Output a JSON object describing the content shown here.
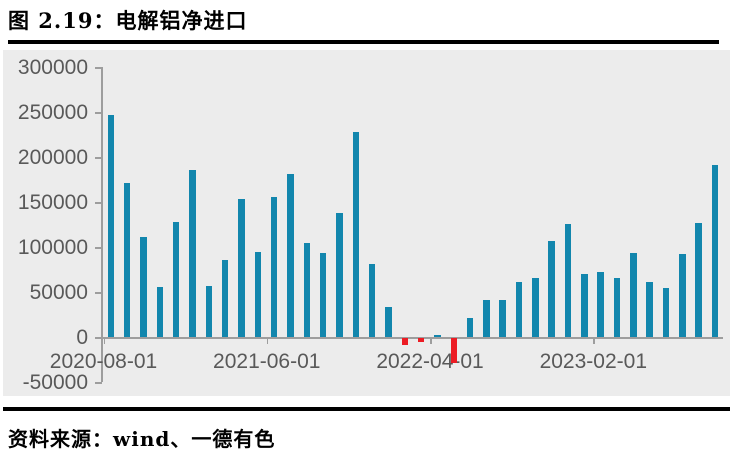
{
  "header": {
    "title": "图 2.19：电解铝净进口"
  },
  "footer": {
    "source": "资料来源：wind、一德有色"
  },
  "chart_data": {
    "type": "bar",
    "title": "电解铝净进口",
    "xlabel": "",
    "ylabel": "",
    "ylim": [
      -50000,
      300000
    ],
    "grid": false,
    "legend": "none",
    "plot_background": "#ececec",
    "axis_color": "#9d9d9d",
    "tick_label_color": "#595959",
    "bar_color_positive": "#1286ad",
    "bar_color_negative": "#ec1c24",
    "yticks": [
      300000,
      250000,
      200000,
      150000,
      100000,
      50000,
      0,
      -50000
    ],
    "ytick_labels": [
      "300000",
      "250000",
      "200000",
      "150000",
      "100000",
      "50000",
      "0",
      "-50000"
    ],
    "xtick_labels": [
      "2020-08-01",
      "2021-06-01",
      "2022-04-01",
      "2023-02-01"
    ],
    "xtick_month_index": [
      0,
      10,
      20,
      30
    ],
    "x": [
      "2020-08",
      "2020-09",
      "2020-10",
      "2020-11",
      "2020-12",
      "2021-01",
      "2021-02",
      "2021-03",
      "2021-04",
      "2021-05",
      "2021-06",
      "2021-07",
      "2021-08",
      "2021-09",
      "2021-10",
      "2021-11",
      "2021-12",
      "2022-01",
      "2022-02",
      "2022-03",
      "2022-04",
      "2022-05",
      "2022-06",
      "2022-07",
      "2022-08",
      "2022-09",
      "2022-10",
      "2022-11",
      "2022-12",
      "2023-01",
      "2023-02",
      "2023-03",
      "2023-04",
      "2023-05",
      "2023-06",
      "2023-07",
      "2023-08",
      "2023-09"
    ],
    "values": [
      247000,
      171000,
      111000,
      56000,
      128000,
      186000,
      57000,
      86000,
      154000,
      95000,
      156000,
      181000,
      105000,
      94000,
      138000,
      228000,
      81000,
      34000,
      -7000,
      -4000,
      3000,
      -27000,
      21000,
      42000,
      42000,
      62000,
      66000,
      107000,
      126000,
      70000,
      73000,
      66000,
      94000,
      61000,
      55000,
      93000,
      127000,
      192000
    ]
  }
}
